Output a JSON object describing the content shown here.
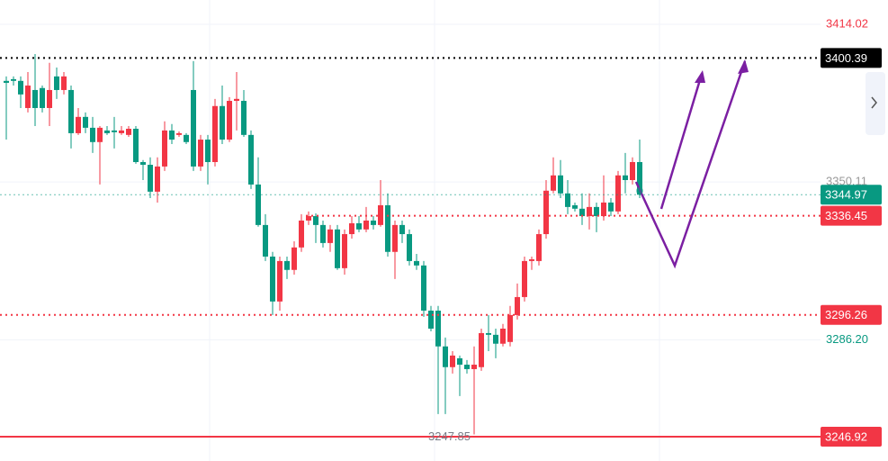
{
  "chart_data": {
    "type": "candlestick",
    "open": [
      3391.1,
      3391.8,
      3391.1,
      3380.1,
      3387.4,
      3388.2,
      3380.1,
      3392.9,
      3387.4,
      3387.4,
      3369.9,
      3376.5,
      3372.1,
      3366.3,
      3371.0,
      3371.0,
      3369.9,
      3369.2,
      3371.7,
      3358.2,
      3357.1,
      3346.2,
      3356.4,
      3371.0,
      3369.2,
      3369.2,
      3387.4,
      3356.4,
      3367.3,
      3358.2,
      3380.9,
      3367.3,
      3383.0,
      3383.0,
      3369.2,
      3349.1,
      3332.7,
      3319.9,
      3301.7,
      3318.1,
      3314.5,
      3323.6,
      3334.5,
      3336.3,
      3332.7,
      3325.4,
      3330.9,
      3315.2,
      3329.0,
      3333.4,
      3330.9,
      3334.5,
      3332.7,
      3340.7,
      3321.8,
      3332.7,
      3329.0,
      3318.1,
      3316.3,
      3298.0,
      3298.0,
      3283.5,
      3275.1,
      3278.7,
      3276.1,
      3274.3,
      3275.1,
      3288.9,
      3288.2,
      3284.6,
      3285.3,
      3296.2,
      3303.5,
      3318.1,
      3318.1,
      3329.0,
      3346.6,
      3352.8,
      3345.5,
      3340.7,
      3339.3,
      3336.3,
      3340.0,
      3336.3,
      3341.8,
      3338.2,
      3352.8,
      3350.9,
      3358.2
    ],
    "high": [
      3392.9,
      3392.9,
      3392.9,
      3394.7,
      3402.0,
      3389.2,
      3398.4,
      3396.5,
      3394.7,
      3389.2,
      3380.1,
      3378.3,
      3376.5,
      3372.8,
      3372.8,
      3376.5,
      3372.8,
      3372.8,
      3372.8,
      3359.0,
      3360.1,
      3360.1,
      3374.7,
      3373.6,
      3370.6,
      3369.9,
      3399.1,
      3369.2,
      3369.2,
      3383.8,
      3389.2,
      3384.5,
      3394.7,
      3387.4,
      3371.0,
      3360.1,
      3337.1,
      3321.8,
      3319.9,
      3319.9,
      3326.1,
      3337.1,
      3338.2,
      3337.4,
      3334.5,
      3332.7,
      3332.7,
      3330.9,
      3336.3,
      3336.3,
      3340.0,
      3336.3,
      3350.9,
      3345.5,
      3334.5,
      3334.5,
      3330.9,
      3321.0,
      3318.1,
      3299.9,
      3299.9,
      3287.1,
      3281.6,
      3279.8,
      3278.0,
      3283.5,
      3290.7,
      3296.2,
      3290.7,
      3292.6,
      3299.9,
      3309.0,
      3319.9,
      3319.9,
      3330.9,
      3350.9,
      3360.1,
      3359.0,
      3350.9,
      3341.8,
      3345.5,
      3345.5,
      3341.8,
      3352.8,
      3343.6,
      3354.6,
      3361.9,
      3360.1,
      3367.3
    ],
    "low": [
      3367.3,
      3389.2,
      3380.1,
      3378.3,
      3372.8,
      3378.3,
      3372.8,
      3383.8,
      3385.6,
      3363.7,
      3369.2,
      3369.9,
      3361.9,
      3349.1,
      3369.2,
      3363.7,
      3369.2,
      3368.4,
      3357.5,
      3350.9,
      3343.6,
      3341.8,
      3354.6,
      3365.5,
      3368.4,
      3365.5,
      3354.6,
      3354.6,
      3349.1,
      3356.4,
      3365.5,
      3366.3,
      3371.0,
      3368.4,
      3347.3,
      3332.0,
      3318.1,
      3296.2,
      3298.0,
      3310.8,
      3312.6,
      3321.8,
      3332.7,
      3325.4,
      3323.6,
      3321.8,
      3314.5,
      3312.6,
      3327.2,
      3329.8,
      3329.8,
      3330.9,
      3332.0,
      3319.9,
      3310.8,
      3325.4,
      3316.3,
      3314.5,
      3295.5,
      3289.6,
      3256.1,
      3256.1,
      3272.5,
      3263.4,
      3272.5,
      3247.85,
      3273.6,
      3281.6,
      3278.7,
      3283.5,
      3283.5,
      3294.4,
      3301.7,
      3314.5,
      3316.3,
      3327.2,
      3345.5,
      3343.6,
      3337.1,
      3338.2,
      3332.7,
      3330.9,
      3329.8,
      3334.5,
      3336.3,
      3337.1,
      3345.5,
      3349.1,
      3343.6
    ],
    "close": [
      3390.3,
      3391.1,
      3385.6,
      3389.2,
      3380.1,
      3380.1,
      3387.4,
      3387.4,
      3392.9,
      3369.9,
      3376.5,
      3372.1,
      3366.3,
      3372.1,
      3369.9,
      3370.3,
      3371.0,
      3371.7,
      3358.2,
      3357.1,
      3346.2,
      3356.4,
      3371.0,
      3367.3,
      3369.9,
      3366.3,
      3356.4,
      3367.3,
      3358.2,
      3380.9,
      3367.3,
      3383.0,
      3383.8,
      3369.2,
      3349.1,
      3332.7,
      3319.9,
      3301.7,
      3318.1,
      3314.5,
      3323.6,
      3334.5,
      3336.3,
      3332.7,
      3325.4,
      3330.9,
      3315.2,
      3329.0,
      3333.4,
      3330.9,
      3334.5,
      3332.7,
      3340.7,
      3321.8,
      3332.7,
      3329.0,
      3318.1,
      3316.3,
      3298.0,
      3290.7,
      3283.5,
      3275.1,
      3279.8,
      3276.1,
      3274.3,
      3276.1,
      3288.9,
      3288.2,
      3284.6,
      3290.7,
      3296.2,
      3303.5,
      3318.1,
      3318.8,
      3329.0,
      3346.6,
      3352.8,
      3345.5,
      3340.0,
      3339.3,
      3336.3,
      3340.0,
      3336.3,
      3341.8,
      3338.2,
      3352.8,
      3350.9,
      3358.2,
      3344.97
    ],
    "up_color": "#f23645",
    "down_color": "#089981",
    "ylim": [
      3237.07,
      3423.87
    ],
    "yticks": [
      3414.02,
      3350.11,
      3286.2
    ],
    "ytick_labels": [
      "3414.02",
      "3350.11",
      "3286.20"
    ],
    "ytick_colors": [
      "#f23645",
      "#999999",
      "#089981"
    ],
    "price_lines": [
      {
        "value": 3400.39,
        "color": "#000000",
        "style": "dotted"
      },
      {
        "value": 3344.97,
        "color": "#089981",
        "style": "dashed"
      },
      {
        "value": 3336.45,
        "color": "#f23645",
        "style": "dotted"
      },
      {
        "value": 3296.26,
        "color": "#f23645",
        "style": "dotted"
      },
      {
        "value": 3246.92,
        "color": "#f23645",
        "style": "solid"
      }
    ],
    "low_label": 3247.85
  }
}
